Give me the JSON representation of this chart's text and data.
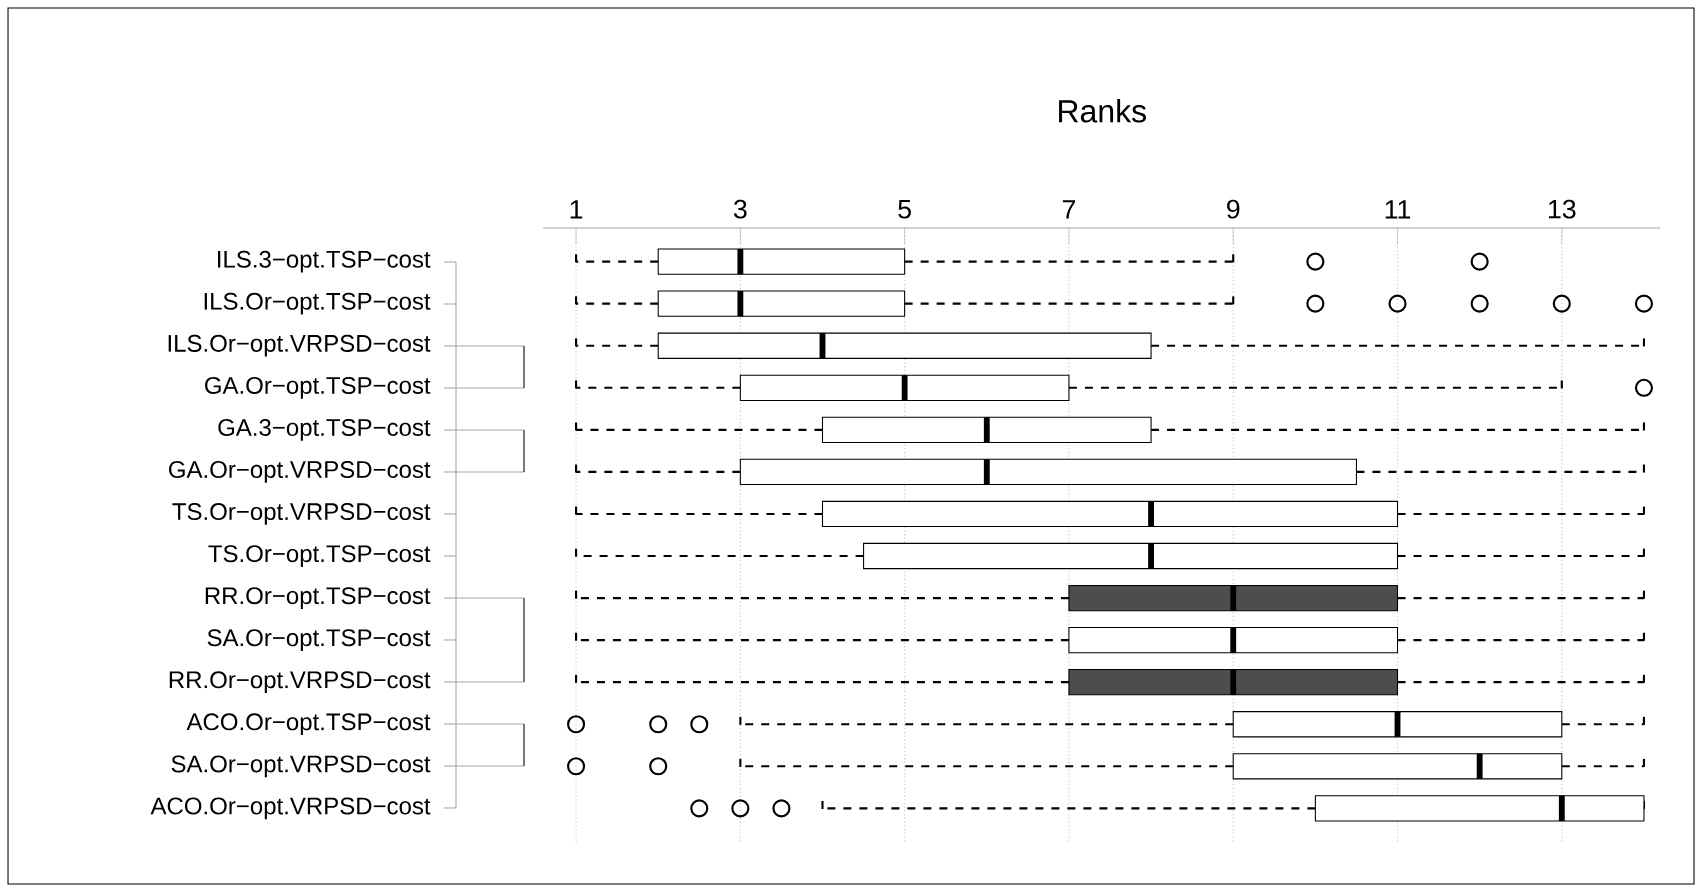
{
  "chart_data": {
    "type": "box",
    "title": "Ranks",
    "orientation": "horizontal",
    "grid": true,
    "marker": "circle",
    "categories": [
      "ILS.3−opt.TSP−cost",
      "ILS.Or−opt.TSP−cost",
      "ILS.Or−opt.VRPSD−cost",
      "GA.Or−opt.TSP−cost",
      "GA.3−opt.TSP−cost",
      "GA.Or−opt.VRPSD−cost",
      "TS.Or−opt.VRPSD−cost",
      "TS.Or−opt.TSP−cost",
      "RR.Or−opt.TSP−cost",
      "SA.Or−opt.TSP−cost",
      "RR.Or−opt.VRPSD−cost",
      "ACO.Or−opt.TSP−cost",
      "SA.Or−opt.VRPSD−cost",
      "ACO.Or−opt.VRPSD−cost"
    ],
    "boxes": [
      {
        "low": 1,
        "q1": 2,
        "median": 3,
        "q3": 5,
        "high": 9,
        "outliers": [
          10,
          12
        ]
      },
      {
        "low": 1,
        "q1": 2,
        "median": 3,
        "q3": 5,
        "high": 9,
        "outliers": [
          10,
          11,
          12,
          13,
          14
        ]
      },
      {
        "low": 1,
        "q1": 2,
        "median": 4,
        "q3": 8,
        "high": 14
      },
      {
        "low": 1,
        "q1": 3,
        "median": 5,
        "q3": 7,
        "high": 13,
        "outliers": [
          14
        ]
      },
      {
        "low": 1,
        "q1": 4,
        "median": 6,
        "q3": 8,
        "high": 14
      },
      {
        "low": 1,
        "q1": 3,
        "median": 6,
        "q3": 10.5,
        "high": 14
      },
      {
        "low": 1,
        "q1": 4,
        "median": 8,
        "q3": 11,
        "high": 14
      },
      {
        "low": 1,
        "q1": 4.5,
        "median": 8,
        "q3": 11,
        "high": 14
      },
      {
        "low": 1,
        "q1": 7,
        "median": 9,
        "q3": 11,
        "high": 14
      },
      {
        "low": 1,
        "q1": 7,
        "median": 9,
        "q3": 11,
        "high": 14
      },
      {
        "low": 1,
        "q1": 7,
        "median": 9,
        "q3": 11,
        "high": 14
      },
      {
        "low": 3,
        "q1": 9,
        "median": 11,
        "q3": 13,
        "high": 14,
        "outliers": [
          1,
          2,
          2.5
        ]
      },
      {
        "low": 3,
        "q1": 9,
        "median": 12,
        "q3": 13,
        "high": 14,
        "outliers": [
          1,
          2
        ]
      },
      {
        "low": 4,
        "q1": 10,
        "median": 13,
        "q3": 14,
        "high": 14,
        "outliers": [
          2.5,
          3,
          3.5
        ]
      }
    ],
    "colors": [
      "#ffffff",
      "#ffffff",
      "#ffffff",
      "#ffffff",
      "#ffffff",
      "#ffffff",
      "#ffffff",
      "#ffffff",
      "#4d4d4d",
      "#ffffff",
      "#4d4d4d",
      "#ffffff",
      "#ffffff",
      "#ffffff"
    ],
    "xlim": [
      0.6,
      14.2
    ],
    "xticks": [
      1,
      3,
      5,
      7,
      9,
      11,
      13
    ]
  }
}
